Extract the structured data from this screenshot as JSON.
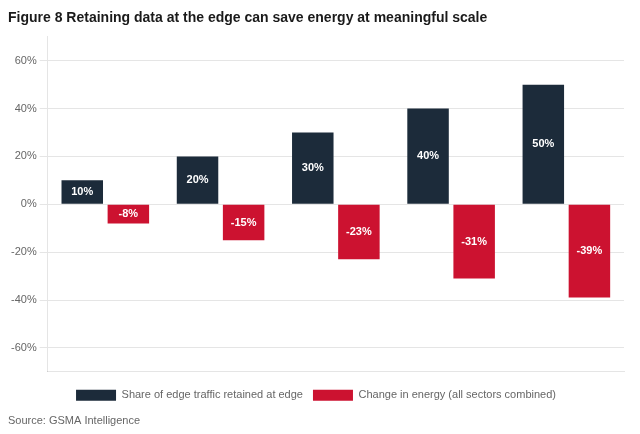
{
  "chart_data": {
    "type": "bar",
    "title": "Figure 8 Retaining data at the edge can save energy at meaningful scale",
    "categories": [
      null,
      null,
      null,
      null,
      null
    ],
    "series": [
      {
        "name": "Share of edge traffic retained at edge",
        "color": "#1c2b3a",
        "values": [
          10,
          20,
          30,
          40,
          50
        ],
        "value_labels": [
          "10%",
          "20%",
          "30%",
          "40%",
          "50%"
        ]
      },
      {
        "name": "Change in energy (all sectors combined)",
        "color": "#cc1230",
        "values": [
          -8,
          -15,
          -23,
          -31,
          -39
        ],
        "value_labels": [
          "-8%",
          "-15%",
          "-23%",
          "-31%",
          "-39%"
        ]
      }
    ],
    "ylim": [
      -70,
      70
    ],
    "yticks": [
      {
        "value": -60,
        "label": "-60%"
      },
      {
        "value": -40,
        "label": "-40%"
      },
      {
        "value": -20,
        "label": "-20%"
      },
      {
        "value": 0,
        "label": "0%"
      },
      {
        "value": 20,
        "label": "20%"
      },
      {
        "value": 40,
        "label": "40%"
      },
      {
        "value": 60,
        "label": "60%"
      }
    ],
    "grid": true,
    "legend": "bottom",
    "data_labels": true,
    "tick_labels": "y",
    "annotations": [
      "Source: GSMA Intelligence"
    ]
  }
}
